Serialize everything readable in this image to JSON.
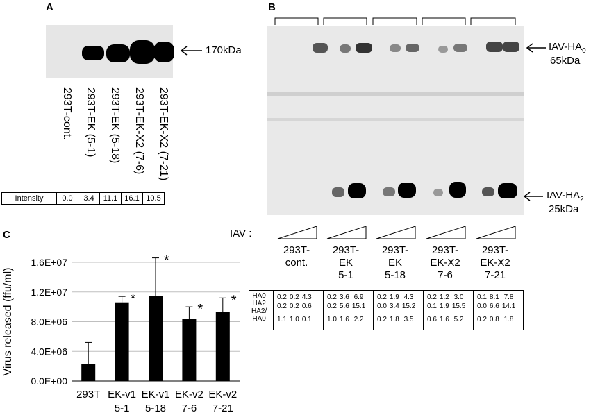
{
  "panel_a": {
    "label": "A",
    "marker": "170kDa",
    "lanes": [
      "293T-cont.",
      "293T-EK (5-1)",
      "293T-EK (5-18)",
      "293T-EK-X2 (7-6)",
      "293T-EK-X2 (7-21)"
    ],
    "intensity_label": "Intensity",
    "intensity": [
      "0.0",
      "3.4",
      "11.1",
      "16.1",
      "10.5"
    ]
  },
  "panel_b": {
    "label": "B",
    "marker_top_name": "IAV-HA",
    "marker_top_sub": "0",
    "marker_top_kda": "65kDa",
    "marker_bottom_name": "IAV-HA",
    "marker_bottom_sub": "2",
    "marker_bottom_kda": "25kDa",
    "iav_label": "IAV :",
    "groups": [
      "293T-\ncont.",
      "293T-\nEK\n5-1",
      "293T-\nEK\n5-18",
      "293T-\nEK-X2\n7-6",
      "293T-\nEK-X2\n7-21"
    ],
    "row_labels": [
      "HA0",
      "HA2",
      "HA2/\nHA0"
    ],
    "quant": [
      [
        [
          "0.2",
          "0.2",
          "4.3"
        ],
        [
          "0.2",
          "0.2",
          "0.6"
        ],
        [
          "1.1",
          "1.0",
          "0.1"
        ]
      ],
      [
        [
          "0.2",
          "3.6",
          "6.9"
        ],
        [
          "0.2",
          "5.6",
          "15.1"
        ],
        [
          "1.0",
          "1.6",
          "2.2"
        ]
      ],
      [
        [
          "0.2",
          "1.9",
          "4.3"
        ],
        [
          "0.0",
          "3.4",
          "15.2"
        ],
        [
          "0.2",
          "1.8",
          "3.5"
        ]
      ],
      [
        [
          "0.2",
          "1.2",
          "3.0"
        ],
        [
          "0.1",
          "1.9",
          "15.5"
        ],
        [
          "0.6",
          "1.6",
          "5.2"
        ]
      ],
      [
        [
          "0.1",
          "8.1",
          "7.8"
        ],
        [
          "0.0",
          "6.6",
          "14.1"
        ],
        [
          "0.2",
          "0.8",
          "1.8"
        ]
      ]
    ]
  },
  "panel_c": {
    "label": "C",
    "sig_mark": "*"
  },
  "chart_data": {
    "type": "bar",
    "categories": [
      "293T",
      "EK-v1\n5-1",
      "EK-v1\n5-18",
      "EK-v2\n7-6",
      "EK-v2\n7-21"
    ],
    "values": [
      2300000,
      10600000,
      11500000,
      8400000,
      9300000
    ],
    "errors": [
      2900000,
      800000,
      5100000,
      1600000,
      1900000
    ],
    "significant": [
      false,
      true,
      true,
      true,
      true
    ],
    "ylabel": "Virus released (ffu/ml)",
    "xlabel": "",
    "ylim": [
      0,
      16000000
    ],
    "yticks": [
      0,
      4000000,
      8000000,
      12000000,
      16000000
    ],
    "ytick_labels": [
      "0.0E+00",
      "4.0E+06",
      "8.0E+06",
      "1.2E+07",
      "1.6E+07"
    ],
    "grid": true,
    "colors": {
      "bar": "#000000",
      "grid": "#bfbfbf"
    }
  }
}
